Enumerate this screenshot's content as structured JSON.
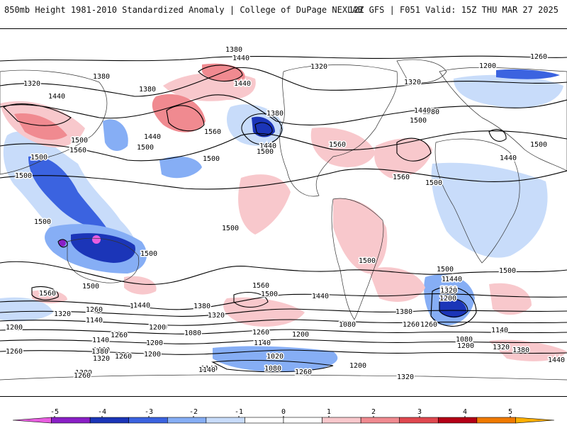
{
  "header": {
    "title_left": "850mb Height 1981-2010 Standardized Anomaly | College of DuPage NEXLAB",
    "title_right": "12Z GFS | F051 Valid: 15Z THU MAR 27 2025"
  },
  "map": {
    "contour_labels": [
      {
        "text": "1380",
        "key": "a1"
      },
      {
        "text": "1440",
        "key": "a2"
      },
      {
        "text": "1320",
        "key": "a3"
      },
      {
        "text": "1260",
        "key": "a4"
      },
      {
        "text": "1200",
        "key": "a5"
      },
      {
        "text": "1320",
        "key": "a6"
      },
      {
        "text": "1380",
        "key": "a7"
      },
      {
        "text": "1440",
        "key": "a8"
      },
      {
        "text": "1380",
        "key": "a9"
      },
      {
        "text": "1320",
        "key": "a10"
      },
      {
        "text": "1380",
        "key": "a11"
      },
      {
        "text": "1440",
        "key": "a12"
      },
      {
        "text": "1500",
        "key": "a13"
      },
      {
        "text": "1440",
        "key": "a14"
      },
      {
        "text": "1500",
        "key": "a15"
      },
      {
        "text": "1560",
        "key": "a16"
      },
      {
        "text": "1440",
        "key": "a17"
      },
      {
        "text": "1500",
        "key": "a18"
      },
      {
        "text": "1380",
        "key": "a19"
      },
      {
        "text": "1440",
        "key": "a20"
      },
      {
        "text": "1500",
        "key": "a21"
      },
      {
        "text": "1560",
        "key": "a22"
      },
      {
        "text": "1500",
        "key": "a23"
      },
      {
        "text": "1560",
        "key": "a24"
      },
      {
        "text": "1560",
        "key": "a25"
      },
      {
        "text": "1500",
        "key": "a26"
      },
      {
        "text": "1500",
        "key": "a27"
      },
      {
        "text": "1440",
        "key": "a28"
      },
      {
        "text": "1500",
        "key": "a29"
      },
      {
        "text": "1500",
        "key": "a30"
      },
      {
        "text": "1500",
        "key": "a31"
      },
      {
        "text": "1500",
        "key": "a32"
      },
      {
        "text": "1500",
        "key": "a33"
      },
      {
        "text": "1560",
        "key": "a34"
      },
      {
        "text": "1500",
        "key": "a35"
      },
      {
        "text": "1560",
        "key": "a36"
      },
      {
        "text": "1500",
        "key": "a37"
      },
      {
        "text": "1440",
        "key": "a38"
      },
      {
        "text": "1440",
        "key": "a39"
      },
      {
        "text": "1380",
        "key": "a40"
      },
      {
        "text": "1380",
        "key": "a41"
      },
      {
        "text": "1320",
        "key": "a42"
      },
      {
        "text": "1320",
        "key": "a43"
      },
      {
        "text": "1260",
        "key": "a44"
      },
      {
        "text": "1260",
        "key": "a45"
      },
      {
        "text": "1200",
        "key": "a46"
      },
      {
        "text": "1200",
        "key": "a47"
      },
      {
        "text": "1140",
        "key": "a48"
      },
      {
        "text": "1140",
        "key": "a49"
      },
      {
        "text": "1080",
        "key": "a50"
      },
      {
        "text": "1080",
        "key": "a51"
      },
      {
        "text": "1020",
        "key": "a52"
      },
      {
        "text": "1080",
        "key": "a53"
      },
      {
        "text": "1140",
        "key": "a54"
      },
      {
        "text": "1200",
        "key": "a55"
      },
      {
        "text": "1260",
        "key": "a56"
      },
      {
        "text": "1320",
        "key": "a57"
      },
      {
        "text": "1380",
        "key": "a58"
      },
      {
        "text": "1440",
        "key": "a59"
      },
      {
        "text": "1500",
        "key": "a60"
      },
      {
        "text": "1500",
        "key": "a61"
      },
      {
        "text": "1440",
        "key": "a62"
      },
      {
        "text": "1380",
        "key": "a63"
      },
      {
        "text": "1320",
        "key": "a64"
      },
      {
        "text": "1260",
        "key": "a65"
      },
      {
        "text": "1200",
        "key": "a66"
      },
      {
        "text": "1140",
        "key": "a67"
      },
      {
        "text": "1080",
        "key": "a68"
      },
      {
        "text": "1320",
        "key": "a69"
      },
      {
        "text": "1380",
        "key": "a70"
      },
      {
        "text": "1440",
        "key": "a71"
      },
      {
        "text": "1320",
        "key": "a72"
      },
      {
        "text": "1260",
        "key": "a73"
      },
      {
        "text": "1140",
        "key": "a74"
      },
      {
        "text": "1200",
        "key": "a75"
      },
      {
        "text": "1140",
        "key": "a76"
      },
      {
        "text": "1320",
        "key": "a77"
      },
      {
        "text": "1380",
        "key": "a78"
      },
      {
        "text": "1260",
        "key": "a79"
      },
      {
        "text": "1200",
        "key": "a80"
      },
      {
        "text": "1260",
        "key": "a81"
      },
      {
        "text": "1320",
        "key": "a82"
      },
      {
        "text": "1140",
        "key": "a83"
      },
      {
        "text": "1200",
        "key": "a84"
      },
      {
        "text": "1260",
        "key": "a85"
      },
      {
        "text": "1500",
        "key": "a86"
      },
      {
        "text": "1560",
        "key": "a87"
      },
      {
        "text": "1500",
        "key": "a88"
      },
      {
        "text": "1500",
        "key": "a89"
      },
      {
        "text": "1200",
        "key": "a90"
      },
      {
        "text": "1200",
        "key": "a91"
      },
      {
        "text": "1260",
        "key": "a92"
      },
      {
        "text": "1440",
        "key": "a93"
      },
      {
        "text": "1200",
        "key": "a94"
      }
    ]
  },
  "legend": {
    "ticks": [
      "-5",
      "-4",
      "-3",
      "-2",
      "-1",
      "0",
      "1",
      "2",
      "3",
      "4",
      "5"
    ],
    "colors": [
      "#e85ee0",
      "#8a1fc6",
      "#1b35b8",
      "#3b63e0",
      "#86aef5",
      "#c8dcfa",
      "#ffffff",
      "#ffffff",
      "#f8c8cc",
      "#f08a90",
      "#e0484f",
      "#b40016",
      "#f07a00",
      "#ffb000"
    ]
  }
}
